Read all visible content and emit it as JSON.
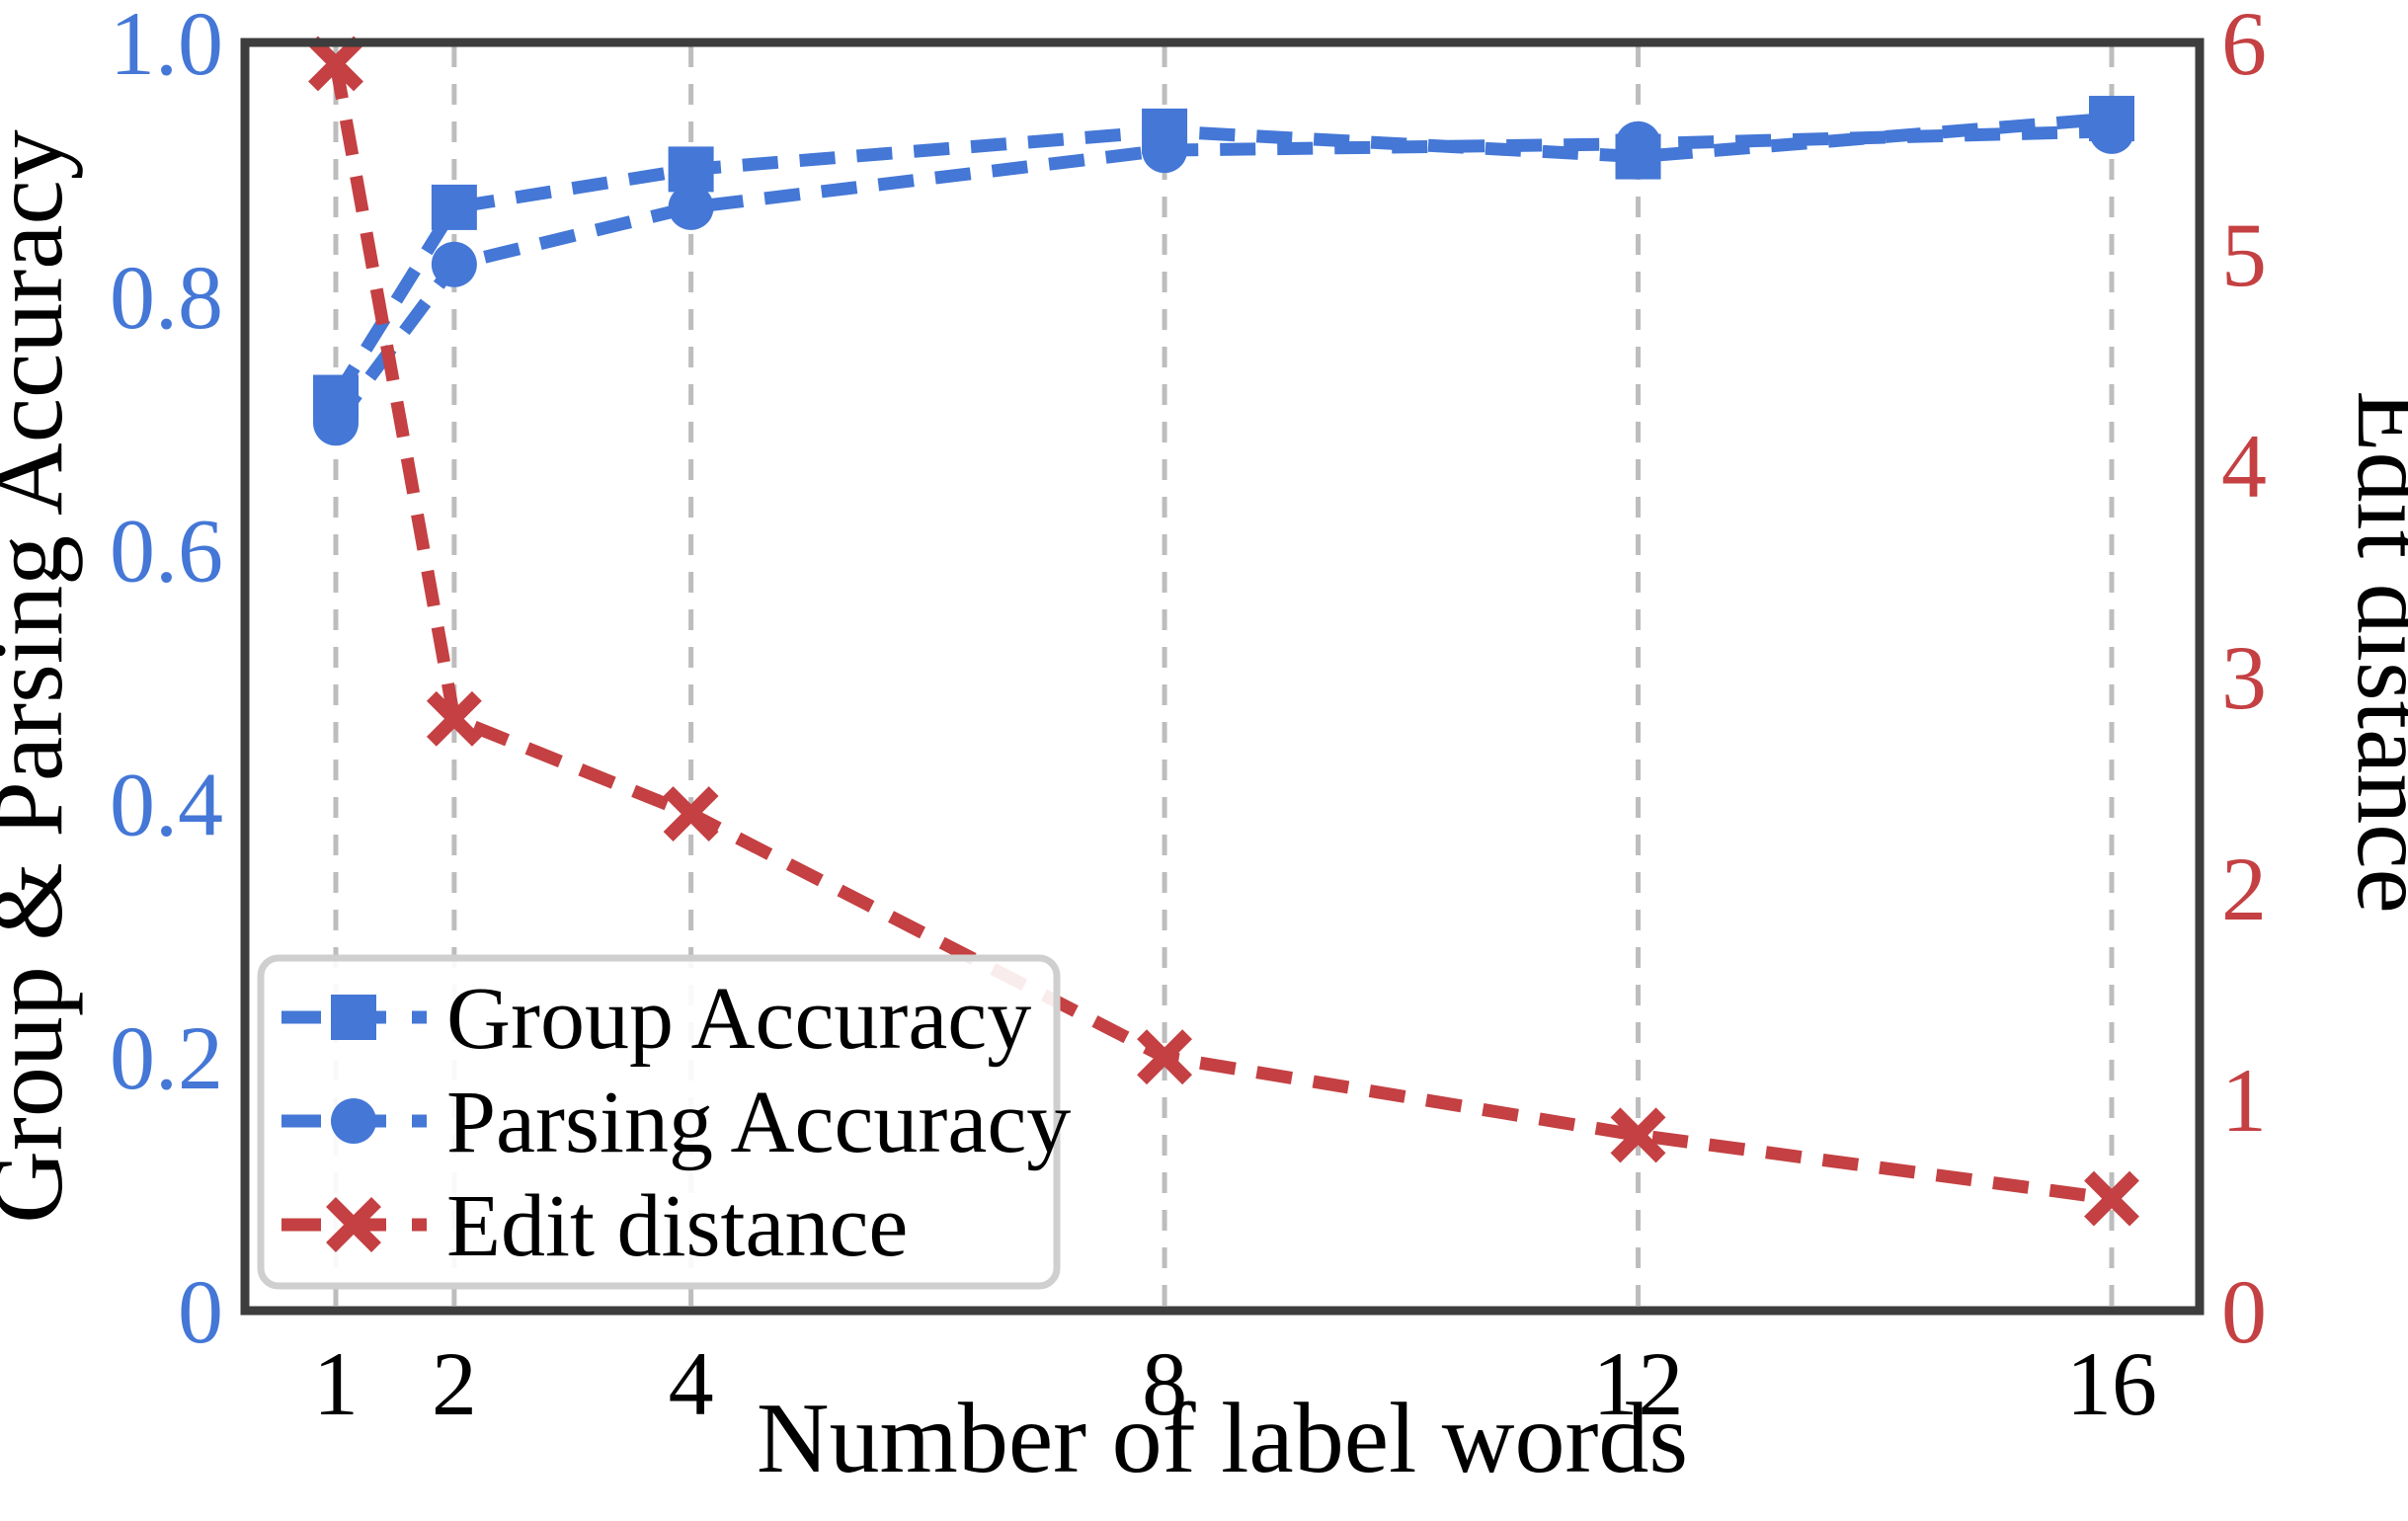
{
  "figure": {
    "xlabel": "Number of label words",
    "ylabel_left": "Group & Parsing Accuracy",
    "ylabel_right": "Edit distance"
  },
  "chart_data": {
    "type": "line",
    "x": [
      1,
      2,
      4,
      8,
      12,
      16
    ],
    "x_tick_labels": [
      "1",
      "2",
      "4",
      "8",
      "12",
      "16"
    ],
    "xlabel": "Number of label words",
    "left_axis": {
      "label": "Group & Parsing Accuracy",
      "range": [
        0,
        1.0
      ],
      "ticks": [
        0,
        0.2,
        0.4,
        0.6,
        0.8,
        1.0
      ],
      "tick_labels": [
        "0",
        "0.2",
        "0.4",
        "0.6",
        "0.8",
        "1.0"
      ],
      "color": "#4477d6"
    },
    "right_axis": {
      "label": "Edit distance",
      "range": [
        0,
        6
      ],
      "ticks": [
        0,
        1,
        2,
        3,
        4,
        5,
        6
      ],
      "tick_labels": [
        "0",
        "1",
        "2",
        "3",
        "4",
        "5",
        "6"
      ],
      "color": "#c44042"
    },
    "series": [
      {
        "name": "Group Accuracy",
        "axis": "left",
        "marker": "square",
        "color": "#4477d6",
        "linestyle": "dashed",
        "values": [
          0.72,
          0.87,
          0.9,
          0.93,
          0.91,
          0.94
        ]
      },
      {
        "name": "Parsing Accuracy",
        "axis": "left",
        "marker": "circle",
        "color": "#4477d6",
        "linestyle": "dashed",
        "values": [
          0.7,
          0.825,
          0.87,
          0.915,
          0.92,
          0.93
        ]
      },
      {
        "name": "Edit distance",
        "axis": "right",
        "marker": "x",
        "color": "#c44042",
        "linestyle": "dashed",
        "values": [
          5.9,
          2.8,
          2.35,
          1.2,
          0.83,
          0.53
        ]
      }
    ],
    "legend": {
      "position": "lower left",
      "entries": [
        "Group Accuracy",
        "Parsing Accuracy",
        "Edit distance"
      ]
    },
    "grid": {
      "vertical": true,
      "horizontal": false
    },
    "style_colors": {
      "gridline": "#bdbdbd",
      "spine": "#3d3d3d",
      "legend_border": "#cfcfcf",
      "background": "#ffffff",
      "black_text": "#000000"
    }
  }
}
